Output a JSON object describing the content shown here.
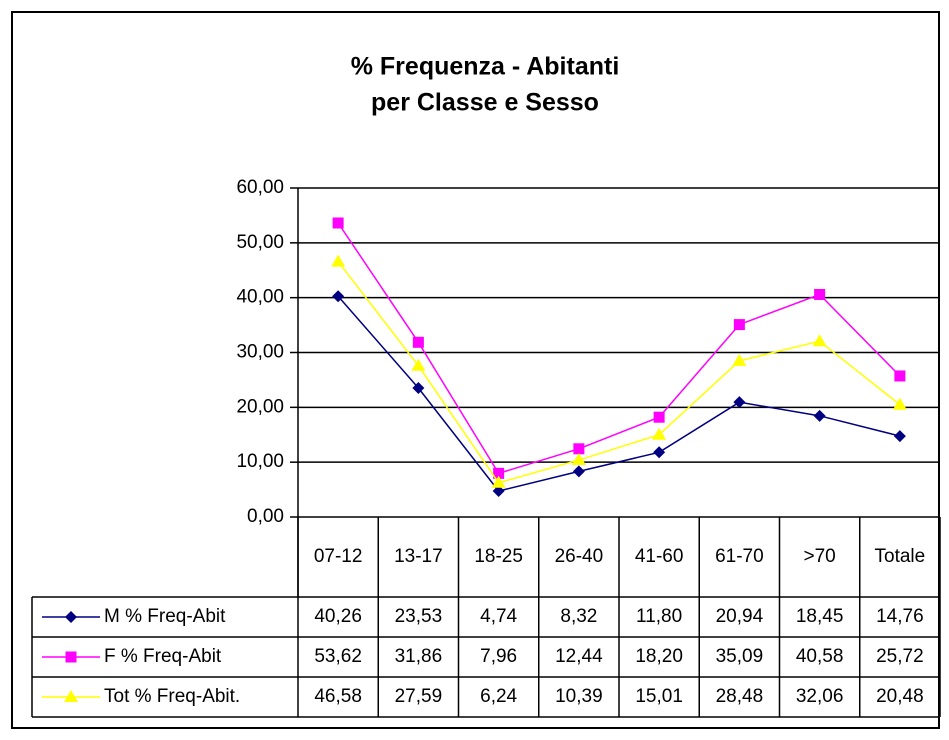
{
  "chart_data": {
    "type": "line",
    "title": [
      "% Frequenza - Abitanti",
      "per Classe e Sesso"
    ],
    "categories": [
      "07-12",
      "13-17",
      "18-25",
      "26-40",
      "41-60",
      "61-70",
      ">70",
      "Totale"
    ],
    "series": [
      {
        "name": "M % Freq-Abit",
        "color": "#000080",
        "marker": "diamond",
        "values": [
          40.26,
          23.53,
          4.74,
          8.32,
          11.8,
          20.94,
          18.45,
          14.76
        ],
        "value_labels": [
          "40,26",
          "23,53",
          "4,74",
          "8,32",
          "11,80",
          "20,94",
          "18,45",
          "14,76"
        ]
      },
      {
        "name": "F % Freq-Abit",
        "color": "#ff00ff",
        "marker": "square",
        "values": [
          53.62,
          31.86,
          7.96,
          12.44,
          18.2,
          35.09,
          40.58,
          25.72
        ],
        "value_labels": [
          "53,62",
          "31,86",
          "7,96",
          "12,44",
          "18,20",
          "35,09",
          "40,58",
          "25,72"
        ]
      },
      {
        "name": "Tot % Freq-Abit.",
        "color": "#ffff00",
        "marker": "triangle",
        "values": [
          46.58,
          27.59,
          6.24,
          10.39,
          15.01,
          28.48,
          32.06,
          20.48
        ],
        "value_labels": [
          "46,58",
          "27,59",
          "6,24",
          "10,39",
          "15,01",
          "28,48",
          "32,06",
          "20,48"
        ]
      }
    ],
    "ylim": [
      0,
      60
    ],
    "yticks": [
      {
        "value": 0,
        "label": "0,00"
      },
      {
        "value": 10,
        "label": "10,00"
      },
      {
        "value": 20,
        "label": "20,00"
      },
      {
        "value": 30,
        "label": "30,00"
      },
      {
        "value": 40,
        "label": "40,00"
      },
      {
        "value": 50,
        "label": "50,00"
      },
      {
        "value": 60,
        "label": "60,00"
      }
    ],
    "grid": true
  }
}
